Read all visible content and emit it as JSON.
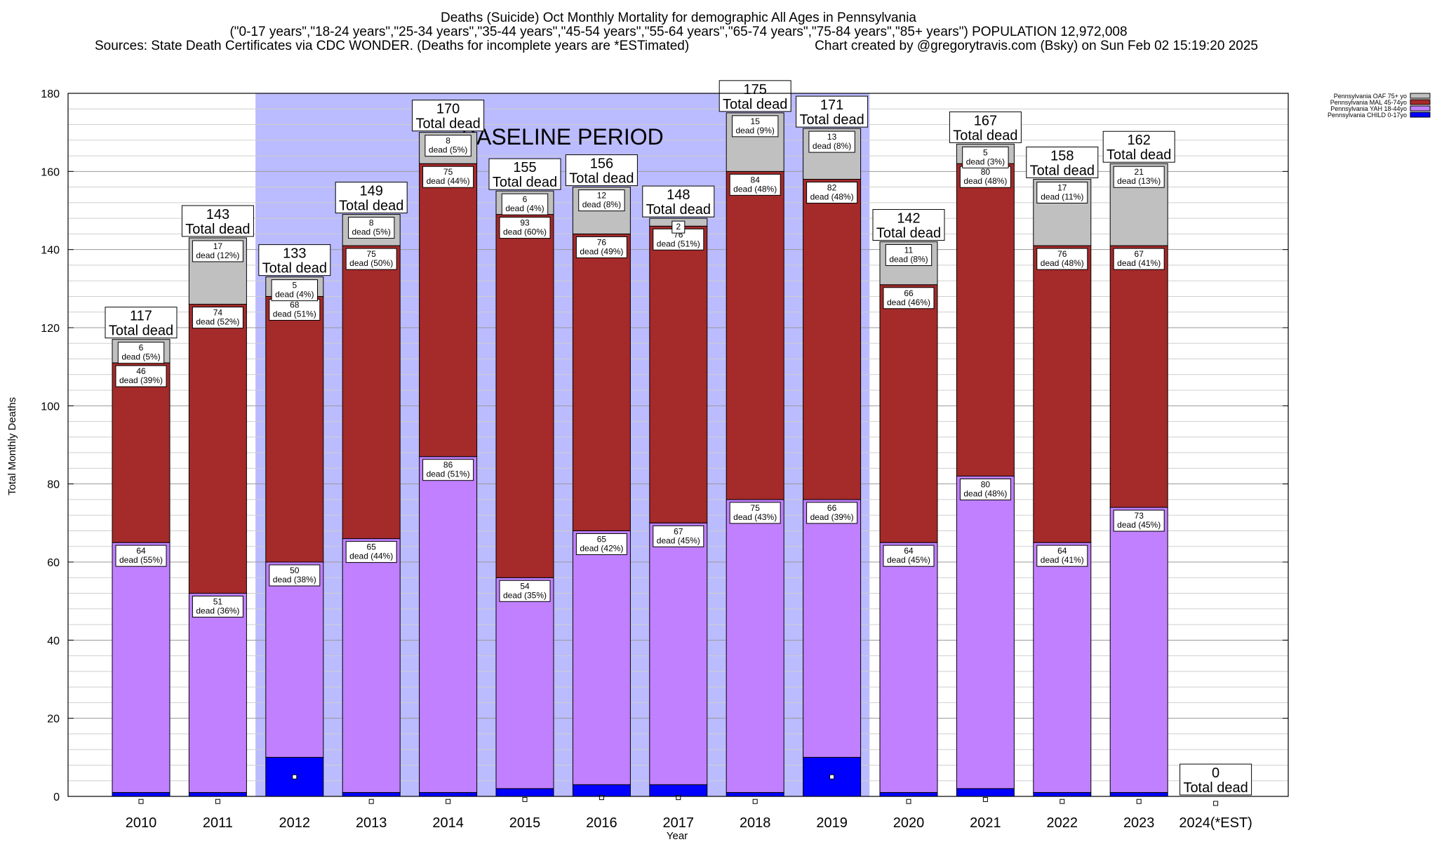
{
  "title": {
    "line1": "Deaths (Suicide) Oct Monthly Mortality for demographic All Ages in Pennsylvania",
    "line2": "(\"0-17 years\",\"18-24 years\",\"25-34 years\",\"35-44 years\",\"45-54 years\",\"55-64 years\",\"65-74 years\",\"75-84 years\",\"85+ years\") POPULATION 12,972,008",
    "line3_left": "Sources: State Death Certificates via CDC WONDER. (Deaths for incomplete years are *ESTimated)",
    "line3_right": "Chart created by @gregorytravis.com (Bsky) on Sun Feb 02 15:19:20 2025"
  },
  "chart_data": {
    "type": "bar",
    "stacked": true,
    "xlabel": "Year",
    "ylabel": "Total Monthly Deaths",
    "ylim": [
      0,
      180
    ],
    "yticks": [
      0,
      20,
      40,
      60,
      80,
      100,
      120,
      140,
      160,
      180
    ],
    "categories": [
      "2010",
      "2011",
      "2012",
      "2013",
      "2014",
      "2015",
      "2016",
      "2017",
      "2018",
      "2019",
      "2020",
      "2021",
      "2022",
      "2023",
      "2024(*EST)"
    ],
    "baseline": {
      "label": "BASELINE PERIOD",
      "start": "2012",
      "end": "2019",
      "color": "#bbbbff"
    },
    "series": [
      {
        "name": "Pennsylvania CHILD 0-17yo",
        "color": "#0000ff",
        "values": [
          1,
          1,
          10,
          1,
          1,
          2,
          3,
          3,
          1,
          10,
          1,
          2,
          1,
          1,
          0
        ]
      },
      {
        "name": "Pennsylvania YAH 18-44yo",
        "color": "#c080ff",
        "values": [
          64,
          51,
          50,
          65,
          86,
          54,
          65,
          67,
          75,
          66,
          64,
          80,
          64,
          73,
          0
        ],
        "labels": [
          "64|dead (55%)",
          "51|dead (36%)",
          "50|dead (38%)",
          "65|dead (44%)",
          "86|dead (51%)",
          "54|dead (35%)",
          "65|dead (42%)",
          "67|dead (45%)",
          "75|dead (43%)",
          "66|dead (39%)",
          "64|dead (45%)",
          "80|dead (48%)",
          "64|dead (41%)",
          "73|dead (45%)",
          ""
        ]
      },
      {
        "name": "Pennsylvania MAL 45-74yo",
        "color": "#a52a2a",
        "values": [
          46,
          74,
          68,
          75,
          75,
          93,
          76,
          76,
          84,
          82,
          66,
          80,
          76,
          67,
          0
        ],
        "labels": [
          "46|dead (39%)",
          "74|dead (52%)",
          "68|dead (51%)",
          "75|dead (50%)",
          "75|dead (44%)",
          "93|dead (60%)",
          "76|dead (49%)",
          "76|dead (51%)",
          "84|dead (48%)",
          "82|dead (48%)",
          "66|dead (46%)",
          "80|dead (48%)",
          "76|dead (48%)",
          "67|dead (41%)",
          ""
        ]
      },
      {
        "name": "Pennsylvania OAF 75+ yo",
        "color": "#c0c0c0",
        "values": [
          6,
          17,
          5,
          8,
          8,
          6,
          12,
          2,
          15,
          13,
          11,
          5,
          17,
          21,
          0
        ],
        "labels": [
          "6|dead (5%)",
          "17|dead (12%)",
          "5|dead (4%)",
          "8|dead (5%)",
          "8|dead (5%)",
          "6|dead (4%)",
          "12|dead (8%)",
          "2|",
          "15|dead (9%)",
          "13|dead (8%)",
          "11|dead (8%)",
          "5|dead (3%)",
          "17|dead (11%)",
          "21|dead (13%)",
          ""
        ]
      }
    ],
    "totals": [
      117,
      143,
      133,
      149,
      170,
      155,
      156,
      148,
      175,
      171,
      142,
      167,
      158,
      162,
      0
    ],
    "total_suffix": "Total dead",
    "legend": {
      "position": "top-right",
      "entries": [
        {
          "label": "Pennsylvania OAF 75+ yo",
          "color": "#c0c0c0"
        },
        {
          "label": "Pennsylvania MAL 45-74yo",
          "color": "#a52a2a"
        },
        {
          "label": "Pennsylvania YAH 18-44yo",
          "color": "#c080ff"
        },
        {
          "label": "Pennsylvania CHILD 0-17yo",
          "color": "#0000ff"
        }
      ]
    }
  }
}
